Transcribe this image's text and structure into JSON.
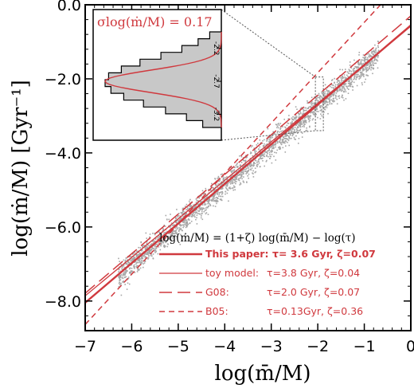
{
  "colors": {
    "line": "#d0393e",
    "scatter": "#a6a6a6",
    "hist_fill": "#c8c8c8"
  },
  "chart_data": {
    "type": "scatter",
    "xlabel": "log(m̄/M)",
    "ylabel": "log(ṁ/M)   [Gyr⁻¹]",
    "xlim": [
      -7,
      0
    ],
    "ylim": [
      -8.8,
      0
    ],
    "xticks": [
      -7,
      -6,
      -5,
      -4,
      -3,
      -2,
      -1,
      0
    ],
    "xtick_labels": [
      "−7",
      "−6",
      "−5",
      "−4",
      "−3",
      "−2",
      "−1",
      "0"
    ],
    "yticks": [
      0,
      -2,
      -4,
      -6,
      -8
    ],
    "ytick_labels": [
      "0.0",
      "−2.0",
      "−4.0",
      "−6.0",
      "−8.0"
    ],
    "scatter_band": {
      "x_range": [
        -6.3,
        -0.7
      ],
      "relation": "log(ṁ/M) = 1.07·log(m̄/M) − 0.56",
      "scatter_dex": 0.17
    },
    "formula": "log(ṁ/M) = (1+ζ) log(m̄/M) − log(τ)",
    "series": [
      {
        "name": "This paper",
        "style": "solid-thick",
        "tau": "3.6 Gyr",
        "zeta": 0.07,
        "slope": 1.07,
        "intercept": -0.556
      },
      {
        "name": "toy model",
        "style": "solid-thin",
        "tau": "3.8 Gyr",
        "zeta": 0.04,
        "slope": 1.04,
        "intercept": -0.58
      },
      {
        "name": "G08",
        "style": "long-dash",
        "tau": "2.0 Gyr",
        "zeta": 0.07,
        "slope": 1.07,
        "intercept": -0.301
      },
      {
        "name": "B05",
        "style": "short-dash",
        "tau": "0.13Gyr",
        "zeta": 0.36,
        "slope": 1.36,
        "intercept": 0.886
      }
    ],
    "legend_rows": [
      {
        "left": "This paper:",
        "right": "τ= 3.6 Gyr, ζ=0.07",
        "bold": true
      },
      {
        "left": "toy model:",
        "right": "τ=3.8 Gyr, ζ=0.04",
        "bold": false
      },
      {
        "left": "G08:",
        "right": "τ=2.0 Gyr, ζ=0.07",
        "bold": false
      },
      {
        "left": "B05:",
        "right": "τ=0.13Gyr, ζ=0.36",
        "bold": false
      }
    ],
    "legend_position": "bottom-right",
    "inset": {
      "type": "histogram",
      "label": "σlog(ṁ/M) = 0.17",
      "yticks": [
        -2.2,
        -2.7,
        -3.2
      ],
      "ytick_labels": [
        "-2.2",
        "-2.7",
        "-3.2"
      ],
      "ylim": [
        -1.95,
        -3.4
      ],
      "zoom_x": -2.0,
      "zoom_y_range": [
        -1.95,
        -3.4
      ],
      "bins": [
        {
          "y": -2.0,
          "count": 0.1
        },
        {
          "y": -2.1,
          "count": 0.2
        },
        {
          "y": -2.2,
          "count": 0.34
        },
        {
          "y": -2.3,
          "count": 0.52
        },
        {
          "y": -2.4,
          "count": 0.7
        },
        {
          "y": -2.5,
          "count": 0.86
        },
        {
          "y": -2.6,
          "count": 0.97
        },
        {
          "y": -2.7,
          "count": 1.0
        },
        {
          "y": -2.8,
          "count": 0.95
        },
        {
          "y": -2.9,
          "count": 0.84
        },
        {
          "y": -3.0,
          "count": 0.67
        },
        {
          "y": -3.1,
          "count": 0.48
        },
        {
          "y": -3.2,
          "count": 0.3
        },
        {
          "y": -3.3,
          "count": 0.16
        }
      ],
      "gauss_mean": -2.7,
      "gauss_sigma": 0.17
    }
  }
}
